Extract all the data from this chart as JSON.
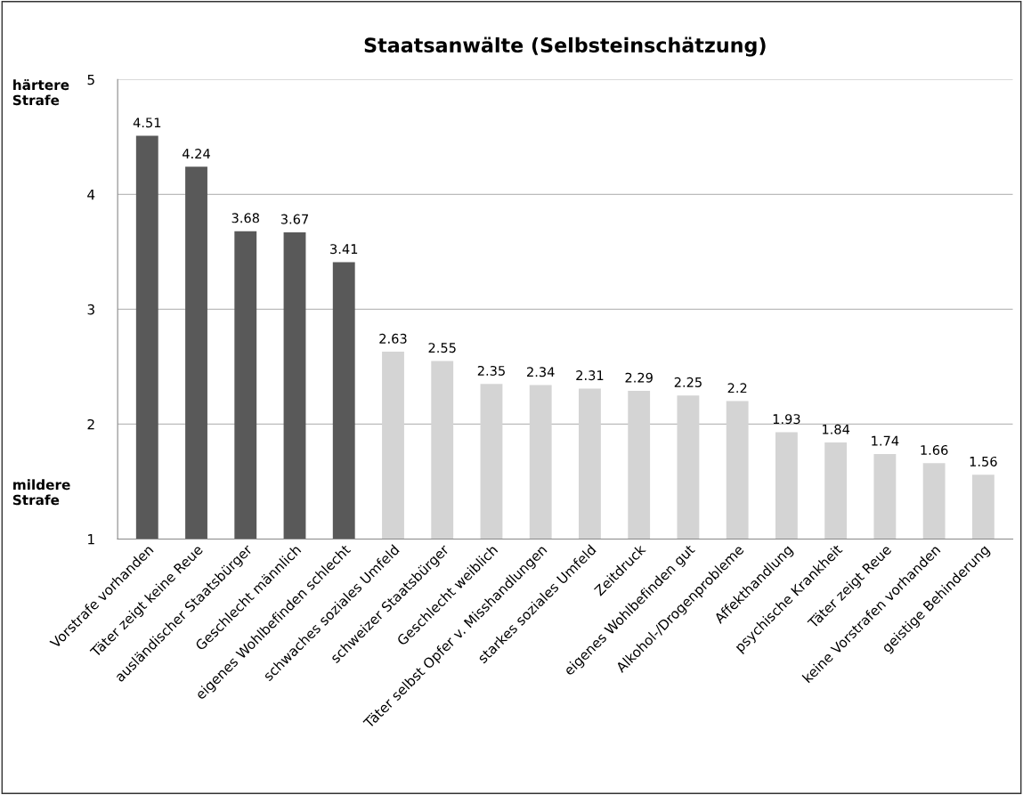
{
  "chart_data": {
    "type": "bar",
    "title": "Staatsanwälte (Selbsteinschätzung)",
    "categories": [
      "Vorstrafe vorhanden",
      "Täter zeigt keine Reue",
      "ausländischer Staatsbürger",
      "Geschlecht männlich",
      "eigenes Wohlbefinden schlecht",
      "schwaches soziales Umfeld",
      "schweizer Staatsbürger",
      "Geschlecht weiblich",
      "Täter selbst Opfer v. Misshandlungen",
      "starkes soziales Umfeld",
      "Zeitdruck",
      "eigenes Wohlbefinden gut",
      "Alkohol-/Drogenprobleme",
      "Affekthandlung",
      "psychische Krankheit",
      "Täter zeigt Reue",
      "keine Vorstrafen vorhanden",
      "geistige Behinderung"
    ],
    "values": [
      4.51,
      4.24,
      3.68,
      3.67,
      3.41,
      2.63,
      2.55,
      2.35,
      2.34,
      2.31,
      2.29,
      2.25,
      2.2,
      1.93,
      1.84,
      1.74,
      1.66,
      1.56
    ],
    "colors": [
      "#595959",
      "#595959",
      "#595959",
      "#595959",
      "#595959",
      "#d4d4d4",
      "#d4d4d4",
      "#d4d4d4",
      "#d4d4d4",
      "#d4d4d4",
      "#d4d4d4",
      "#d4d4d4",
      "#d4d4d4",
      "#d4d4d4",
      "#d4d4d4",
      "#d4d4d4",
      "#d4d4d4",
      "#d4d4d4"
    ],
    "data_labels": true,
    "ylim": [
      1,
      5
    ],
    "yticks": [
      1,
      2,
      3,
      4,
      5
    ],
    "grid": "y",
    "annotations": [
      "härtere\nStrafe",
      "mildere\nStrafe"
    ]
  }
}
